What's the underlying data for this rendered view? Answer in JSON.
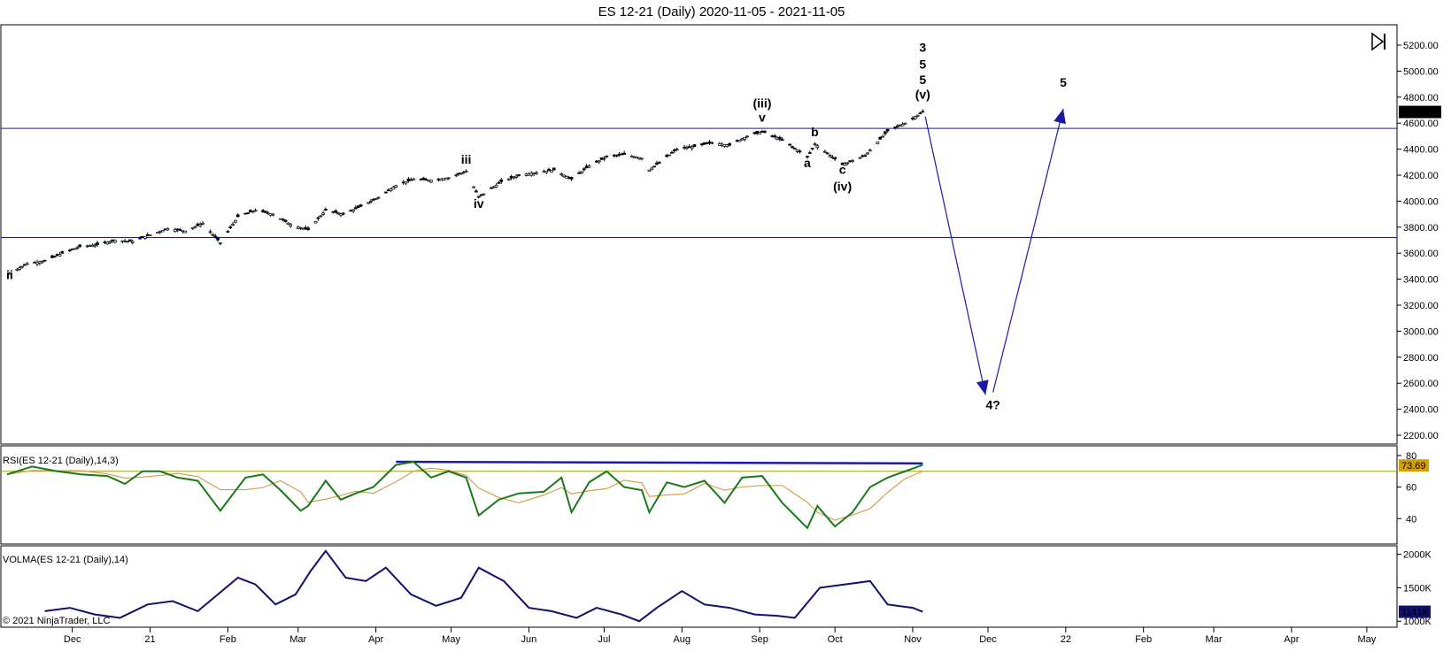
{
  "chart_data": {
    "type": "candlestick",
    "title": "ES 12-21 (Daily)  2020-11-05 - 2021-11-05",
    "copyright": "© 2021 NinjaTrader, LLC",
    "toolbar_icon": "play-to-end-icon",
    "price_panel": {
      "y_ticks": [
        "5200.00",
        "5000.00",
        "4800.00",
        "4600.00",
        "4400.00",
        "4200.00",
        "4000.00",
        "3800.00",
        "3600.00",
        "3400.00",
        "3200.00",
        "3000.00",
        "2800.00",
        "2600.00",
        "2400.00",
        "2200.00"
      ],
      "ylim": [
        2150,
        5250
      ],
      "last_price": "4686.00",
      "horizontal_lines": [
        4560,
        3720
      ],
      "line_color": "#1a1aa6",
      "price_points": [
        {
          "date": "2020-11-06",
          "price": 3445
        },
        {
          "date": "2020-11-13",
          "price": 3520
        },
        {
          "date": "2020-11-20",
          "price": 3540
        },
        {
          "date": "2020-11-27",
          "price": 3600
        },
        {
          "date": "2020-12-04",
          "price": 3650
        },
        {
          "date": "2020-12-11",
          "price": 3665
        },
        {
          "date": "2020-12-18",
          "price": 3700
        },
        {
          "date": "2020-12-25",
          "price": 3690
        },
        {
          "date": "2021-01-01",
          "price": 3740
        },
        {
          "date": "2021-01-08",
          "price": 3790
        },
        {
          "date": "2021-01-15",
          "price": 3770
        },
        {
          "date": "2021-01-22",
          "price": 3830
        },
        {
          "date": "2021-01-29",
          "price": 3680
        },
        {
          "date": "2021-02-05",
          "price": 3880
        },
        {
          "date": "2021-02-12",
          "price": 3930
        },
        {
          "date": "2021-02-19",
          "price": 3900
        },
        {
          "date": "2021-02-26",
          "price": 3820
        },
        {
          "date": "2021-03-05",
          "price": 3780
        },
        {
          "date": "2021-03-12",
          "price": 3930
        },
        {
          "date": "2021-03-19",
          "price": 3900
        },
        {
          "date": "2021-03-26",
          "price": 3960
        },
        {
          "date": "2021-04-02",
          "price": 4030
        },
        {
          "date": "2021-04-09",
          "price": 4120
        },
        {
          "date": "2021-04-16",
          "price": 4170
        },
        {
          "date": "2021-04-23",
          "price": 4160
        },
        {
          "date": "2021-04-30",
          "price": 4180
        },
        {
          "date": "2021-05-07",
          "price": 4230
        },
        {
          "date": "2021-05-12",
          "price": 4030
        },
        {
          "date": "2021-05-21",
          "price": 4150
        },
        {
          "date": "2021-05-28",
          "price": 4200
        },
        {
          "date": "2021-06-04",
          "price": 4220
        },
        {
          "date": "2021-06-11",
          "price": 4240
        },
        {
          "date": "2021-06-18",
          "price": 4170
        },
        {
          "date": "2021-06-25",
          "price": 4270
        },
        {
          "date": "2021-07-02",
          "price": 4340
        },
        {
          "date": "2021-07-09",
          "price": 4360
        },
        {
          "date": "2021-07-16",
          "price": 4330
        },
        {
          "date": "2021-07-19",
          "price": 4240
        },
        {
          "date": "2021-07-30",
          "price": 4400
        },
        {
          "date": "2021-08-06",
          "price": 4420
        },
        {
          "date": "2021-08-13",
          "price": 4450
        },
        {
          "date": "2021-08-20",
          "price": 4430
        },
        {
          "date": "2021-08-27",
          "price": 4500
        },
        {
          "date": "2021-09-02",
          "price": 4535
        },
        {
          "date": "2021-09-10",
          "price": 4470
        },
        {
          "date": "2021-09-20",
          "price": 4340
        },
        {
          "date": "2021-09-23",
          "price": 4440
        },
        {
          "date": "2021-10-04",
          "price": 4280
        },
        {
          "date": "2021-10-13",
          "price": 4350
        },
        {
          "date": "2021-10-22",
          "price": 4540
        },
        {
          "date": "2021-10-29",
          "price": 4600
        },
        {
          "date": "2021-11-05",
          "price": 4686
        }
      ],
      "wave_labels": [
        {
          "text": "ii",
          "date": "2020-11-06",
          "price": 3400,
          "color": "#000000",
          "size": 14
        },
        {
          "text": "iii",
          "date": "2021-05-07",
          "price": 4290,
          "color": "#000000",
          "size": 14
        },
        {
          "text": "iv",
          "date": "2021-05-12",
          "price": 3950,
          "color": "#000000",
          "size": 14
        },
        {
          "text": "(iii)",
          "date": "2021-09-02",
          "price": 4720,
          "color": "#000000",
          "size": 14
        },
        {
          "text": "v",
          "date": "2021-09-02",
          "price": 4610,
          "color": "#000000",
          "size": 14
        },
        {
          "text": "a",
          "date": "2021-09-20",
          "price": 4260,
          "color": "#000000",
          "size": 14
        },
        {
          "text": "b",
          "date": "2021-09-23",
          "price": 4500,
          "color": "#000000",
          "size": 14
        },
        {
          "text": "c",
          "date": "2021-10-04",
          "price": 4210,
          "color": "#000000",
          "size": 14
        },
        {
          "text": "(iv)",
          "date": "2021-10-04",
          "price": 4080,
          "color": "#000000",
          "size": 14
        },
        {
          "text": "(v)",
          "date": "2021-11-05",
          "price": 4790,
          "color": "#000000",
          "size": 14
        },
        {
          "text": "5",
          "date": "2021-11-05",
          "price": 4900,
          "color": "#000000",
          "size": 14
        },
        {
          "text": "5",
          "date": "2021-11-05",
          "price": 5020,
          "color": "#1a1aa6",
          "size": 14
        },
        {
          "text": "3",
          "date": "2021-11-05",
          "price": 5150,
          "color": "#e01010",
          "size": 22
        },
        {
          "text": "4?",
          "date": "2021-12-03",
          "price": 2400,
          "color": "#e01010",
          "size": 20
        },
        {
          "text": "5",
          "date": "2021-12-31",
          "price": 4880,
          "color": "#e01010",
          "size": 20
        }
      ],
      "projection_arrows": [
        {
          "from": {
            "date": "2021-11-06",
            "price": 4650
          },
          "to": {
            "date": "2021-11-30",
            "price": 2510
          }
        },
        {
          "from": {
            "date": "2021-12-03",
            "price": 2530
          },
          "to": {
            "date": "2021-12-31",
            "price": 4710
          }
        }
      ]
    },
    "rsi_panel": {
      "label": "RSI(ES 12-21 (Daily),14,3)",
      "y_ticks": [
        "80",
        "60",
        "40"
      ],
      "ylim": [
        25,
        85
      ],
      "last_value": "73.69",
      "threshold": 70,
      "trendline": {
        "from": {
          "date": "2021-04-09",
          "value": 76
        },
        "to": {
          "date": "2021-11-05",
          "value": 75
        }
      },
      "values": [
        {
          "date": "2020-11-05",
          "value": 68
        },
        {
          "date": "2020-11-15",
          "value": 73
        },
        {
          "date": "2020-11-25",
          "value": 70
        },
        {
          "date": "2020-12-05",
          "value": 68
        },
        {
          "date": "2020-12-15",
          "value": 67
        },
        {
          "date": "2020-12-22",
          "value": 62
        },
        {
          "date": "2020-12-29",
          "value": 70
        },
        {
          "date": "2021-01-05",
          "value": 70
        },
        {
          "date": "2021-01-12",
          "value": 66
        },
        {
          "date": "2021-01-20",
          "value": 64
        },
        {
          "date": "2021-01-29",
          "value": 45
        },
        {
          "date": "2021-02-08",
          "value": 66
        },
        {
          "date": "2021-02-15",
          "value": 68
        },
        {
          "date": "2021-02-22",
          "value": 58
        },
        {
          "date": "2021-03-02",
          "value": 45
        },
        {
          "date": "2021-03-05",
          "value": 48
        },
        {
          "date": "2021-03-12",
          "value": 64
        },
        {
          "date": "2021-03-18",
          "value": 52
        },
        {
          "date": "2021-03-24",
          "value": 56
        },
        {
          "date": "2021-03-31",
          "value": 60
        },
        {
          "date": "2021-04-09",
          "value": 74
        },
        {
          "date": "2021-04-16",
          "value": 76
        },
        {
          "date": "2021-04-23",
          "value": 66
        },
        {
          "date": "2021-04-30",
          "value": 70
        },
        {
          "date": "2021-05-07",
          "value": 66
        },
        {
          "date": "2021-05-12",
          "value": 42
        },
        {
          "date": "2021-05-20",
          "value": 52
        },
        {
          "date": "2021-05-28",
          "value": 56
        },
        {
          "date": "2021-06-07",
          "value": 57
        },
        {
          "date": "2021-06-14",
          "value": 66
        },
        {
          "date": "2021-06-18",
          "value": 44
        },
        {
          "date": "2021-06-25",
          "value": 63
        },
        {
          "date": "2021-07-02",
          "value": 70
        },
        {
          "date": "2021-07-09",
          "value": 60
        },
        {
          "date": "2021-07-16",
          "value": 58
        },
        {
          "date": "2021-07-19",
          "value": 44
        },
        {
          "date": "2021-07-26",
          "value": 63
        },
        {
          "date": "2021-08-02",
          "value": 60
        },
        {
          "date": "2021-08-10",
          "value": 64
        },
        {
          "date": "2021-08-18",
          "value": 50
        },
        {
          "date": "2021-08-25",
          "value": 66
        },
        {
          "date": "2021-09-02",
          "value": 67
        },
        {
          "date": "2021-09-10",
          "value": 50
        },
        {
          "date": "2021-09-20",
          "value": 34
        },
        {
          "date": "2021-09-24",
          "value": 48
        },
        {
          "date": "2021-10-01",
          "value": 35
        },
        {
          "date": "2021-10-08",
          "value": 44
        },
        {
          "date": "2021-10-15",
          "value": 60
        },
        {
          "date": "2021-10-22",
          "value": 66
        },
        {
          "date": "2021-10-29",
          "value": 70
        },
        {
          "date": "2021-11-05",
          "value": 74
        }
      ]
    },
    "volma_panel": {
      "label": "VOLMA(ES 12-21 (Daily),14)",
      "y_ticks": [
        "2000K",
        "1500K",
        "1000K"
      ],
      "ylim": [
        950000,
        2100000
      ],
      "last_value": "1141K",
      "values": [
        {
          "date": "2020-11-20",
          "value": 1150000
        },
        {
          "date": "2020-11-30",
          "value": 1200000
        },
        {
          "date": "2020-12-10",
          "value": 1100000
        },
        {
          "date": "2020-12-20",
          "value": 1050000
        },
        {
          "date": "2020-12-31",
          "value": 1250000
        },
        {
          "date": "2021-01-10",
          "value": 1300000
        },
        {
          "date": "2021-01-20",
          "value": 1150000
        },
        {
          "date": "2021-01-28",
          "value": 1400000
        },
        {
          "date": "2021-02-05",
          "value": 1650000
        },
        {
          "date": "2021-02-12",
          "value": 1550000
        },
        {
          "date": "2021-02-20",
          "value": 1250000
        },
        {
          "date": "2021-02-28",
          "value": 1400000
        },
        {
          "date": "2021-03-06",
          "value": 1750000
        },
        {
          "date": "2021-03-12",
          "value": 2050000
        },
        {
          "date": "2021-03-20",
          "value": 1650000
        },
        {
          "date": "2021-03-28",
          "value": 1600000
        },
        {
          "date": "2021-04-05",
          "value": 1800000
        },
        {
          "date": "2021-04-15",
          "value": 1400000
        },
        {
          "date": "2021-04-25",
          "value": 1230000
        },
        {
          "date": "2021-05-05",
          "value": 1350000
        },
        {
          "date": "2021-05-12",
          "value": 1800000
        },
        {
          "date": "2021-05-22",
          "value": 1600000
        },
        {
          "date": "2021-06-01",
          "value": 1200000
        },
        {
          "date": "2021-06-10",
          "value": 1150000
        },
        {
          "date": "2021-06-20",
          "value": 1050000
        },
        {
          "date": "2021-06-28",
          "value": 1200000
        },
        {
          "date": "2021-07-08",
          "value": 1100000
        },
        {
          "date": "2021-07-15",
          "value": 1000000
        },
        {
          "date": "2021-07-22",
          "value": 1200000
        },
        {
          "date": "2021-08-01",
          "value": 1450000
        },
        {
          "date": "2021-08-10",
          "value": 1250000
        },
        {
          "date": "2021-08-20",
          "value": 1200000
        },
        {
          "date": "2021-08-30",
          "value": 1100000
        },
        {
          "date": "2021-09-08",
          "value": 1080000
        },
        {
          "date": "2021-09-15",
          "value": 1050000
        },
        {
          "date": "2021-09-25",
          "value": 1500000
        },
        {
          "date": "2021-10-05",
          "value": 1550000
        },
        {
          "date": "2021-10-15",
          "value": 1600000
        },
        {
          "date": "2021-10-22",
          "value": 1250000
        },
        {
          "date": "2021-11-01",
          "value": 1200000
        },
        {
          "date": "2021-11-05",
          "value": 1141000
        }
      ]
    },
    "x_axis": {
      "ticks": [
        {
          "label": "Dec",
          "date": "2020-12-01"
        },
        {
          "label": "21",
          "date": "2021-01-01"
        },
        {
          "label": "Feb",
          "date": "2021-02-01"
        },
        {
          "label": "Mar",
          "date": "2021-03-01"
        },
        {
          "label": "Apr",
          "date": "2021-04-01"
        },
        {
          "label": "May",
          "date": "2021-05-01"
        },
        {
          "label": "Jun",
          "date": "2021-06-01"
        },
        {
          "label": "Jul",
          "date": "2021-07-01"
        },
        {
          "label": "Aug",
          "date": "2021-08-01"
        },
        {
          "label": "Sep",
          "date": "2021-09-01"
        },
        {
          "label": "Oct",
          "date": "2021-10-01"
        },
        {
          "label": "Nov",
          "date": "2021-11-01"
        },
        {
          "label": "Dec",
          "date": "2021-12-01"
        },
        {
          "label": "22",
          "date": "2022-01-01"
        },
        {
          "label": "Feb",
          "date": "2022-02-01"
        },
        {
          "label": "Mar",
          "date": "2022-03-01"
        },
        {
          "label": "Apr",
          "date": "2022-04-01"
        },
        {
          "label": "May",
          "date": "2022-05-01"
        }
      ]
    },
    "colors": {
      "candles": "#000000",
      "rsi": "#1a7a1a",
      "rsi_signal": "#d4a050",
      "volma": "#10106e",
      "axis_label_bg": "#10106e",
      "rsi_label_bg": "#d4a000",
      "threshold": "#a0a000"
    }
  }
}
